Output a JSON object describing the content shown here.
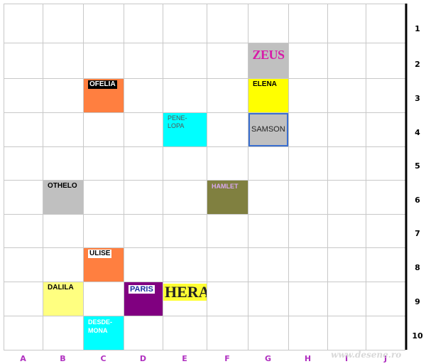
{
  "board": {
    "columns": [
      "A",
      "B",
      "C",
      "D",
      "E",
      "F",
      "G",
      "H",
      "I",
      "J"
    ],
    "rows": [
      "1",
      "2",
      "3",
      "4",
      "5",
      "6",
      "7",
      "8",
      "9",
      "10"
    ],
    "line_color": "#c8c8c8",
    "frame_color": "#000000"
  },
  "tiles": [
    {
      "id": "zeus",
      "label": "ZEUS",
      "col": "G",
      "row": "2",
      "color": "#c0c0c0"
    },
    {
      "id": "elena",
      "label": "ELENA",
      "col": "G",
      "row": "3",
      "color": "#ffff00"
    },
    {
      "id": "ofelia",
      "label": "OFELIA",
      "col": "C",
      "row": "3",
      "color": "#ff7f40"
    },
    {
      "id": "penelopa",
      "label": "PENE-\nLOPA",
      "col": "E",
      "row": "4",
      "color": "#00ffff"
    },
    {
      "id": "samson",
      "label": "SAMSON",
      "col": "G",
      "row": "4",
      "color": "#c0c0c0"
    },
    {
      "id": "othelo",
      "label": "OTHELO",
      "col": "B",
      "row": "6",
      "color": "#c0c0c0"
    },
    {
      "id": "hamlet",
      "label": "HAMLET",
      "col": "F",
      "row": "6",
      "color": "#808040"
    },
    {
      "id": "ulise",
      "label": "ULISE",
      "col": "C",
      "row": "8",
      "color": "#ff7f40"
    },
    {
      "id": "dalila",
      "label": "DALILA",
      "col": "B",
      "row": "9",
      "color": "#ffff80"
    },
    {
      "id": "paris",
      "label": "PARIS",
      "col": "D",
      "row": "9",
      "color": "#800080"
    },
    {
      "id": "hera",
      "label": "HERA",
      "col": "E",
      "row": "9",
      "color": "#ffffff"
    },
    {
      "id": "desdemona",
      "label": "DESDE-\nMONA",
      "col": "C",
      "row": "10",
      "color": "#00ffff"
    }
  ],
  "watermark": "www.desene.ro"
}
